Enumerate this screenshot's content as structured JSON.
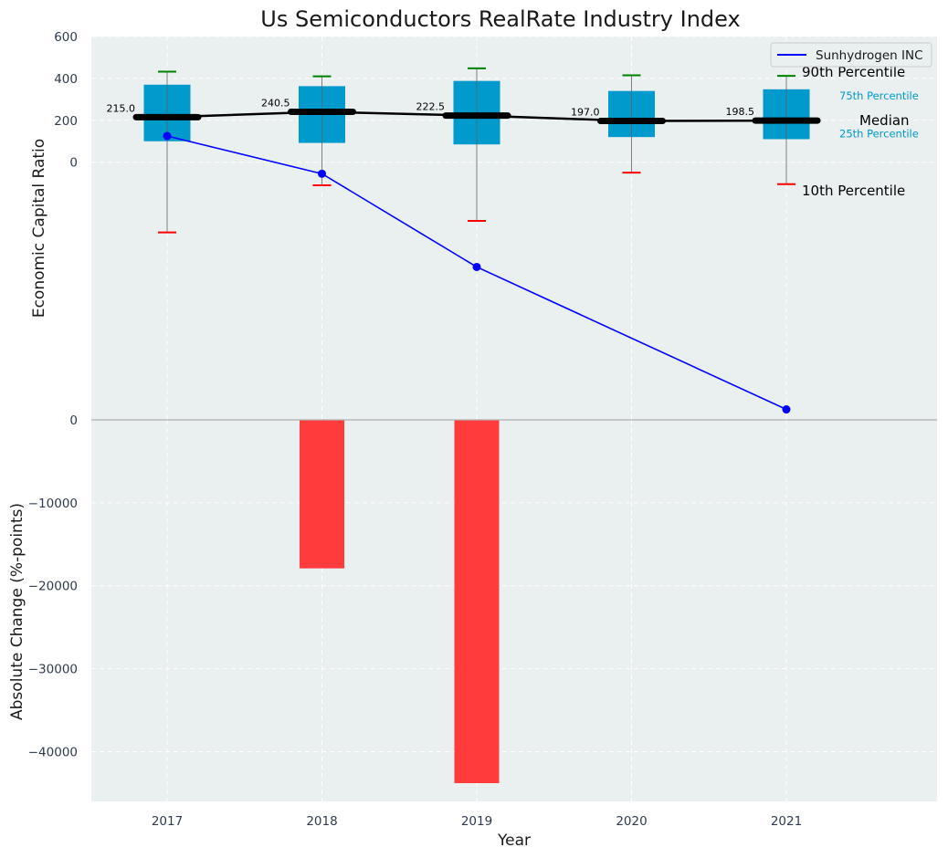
{
  "chart_data": {
    "title": "Us Semiconductors RealRate Industry Index",
    "xlabel": "Year",
    "x_ticks": [
      "2017",
      "2018",
      "2019",
      "2020",
      "2021"
    ],
    "top_panel": {
      "type": "box",
      "ylabel": "Economic Capital Ratio",
      "ylim": [
        -1230,
        600
      ],
      "y_ticks": [
        "600",
        "400",
        "200",
        "0"
      ],
      "boxes": [
        {
          "year": "2017",
          "p10": -335,
          "p25": 100,
          "median": 215.0,
          "p75": 370,
          "p90": 432,
          "label": "215.0"
        },
        {
          "year": "2018",
          "p10": -110,
          "p25": 92,
          "median": 240.5,
          "p75": 363,
          "p90": 410,
          "label": "240.5"
        },
        {
          "year": "2019",
          "p10": -280,
          "p25": 85,
          "median": 222.5,
          "p75": 388,
          "p90": 448,
          "label": "222.5"
        },
        {
          "year": "2020",
          "p10": -50,
          "p25": 120,
          "median": 197.0,
          "p75": 340,
          "p90": 415,
          "label": "197.0"
        },
        {
          "year": "2021",
          "p10": -105,
          "p25": 110,
          "median": 198.5,
          "p75": 348,
          "p90": 412,
          "label": "198.5"
        }
      ],
      "company_line": {
        "name": "Sunhydrogen INC",
        "color": "#0000ff",
        "points": [
          {
            "year": "2017",
            "value": 125
          },
          {
            "year": "2018",
            "value": -55
          },
          {
            "year": "2019",
            "value": -500
          },
          {
            "year": "2021",
            "value": -1180
          }
        ]
      },
      "annotations": {
        "p90": "90th Percentile",
        "p75": "75th Percentile",
        "median": "Median",
        "p25": "25th Percentile",
        "p10": "10th Percentile"
      },
      "legend": {
        "label": "Sunhydrogen INC",
        "position": "top-right"
      }
    },
    "bottom_panel": {
      "type": "bar",
      "ylabel": "Absolute Change (%-points)",
      "ylim": [
        -46000,
        0
      ],
      "y_ticks": [
        {
          "value": 0,
          "label": "0"
        },
        {
          "value": -10000,
          "label": "−10000"
        },
        {
          "value": -20000,
          "label": "−20000"
        },
        {
          "value": -30000,
          "label": "−30000"
        },
        {
          "value": -40000,
          "label": "−40000"
        }
      ],
      "bars": [
        {
          "year": "2018",
          "value": -17900
        },
        {
          "year": "2019",
          "value": -43800
        }
      ]
    },
    "colors": {
      "background": "#eaeff0",
      "box_fill": "#009acd",
      "median_line": "#000000",
      "whisker": "#808080",
      "cap_p90": "#008000",
      "cap_p10": "#ff0000",
      "bar": "#ff3b3b",
      "annotation_p75": "#0099cc"
    }
  }
}
